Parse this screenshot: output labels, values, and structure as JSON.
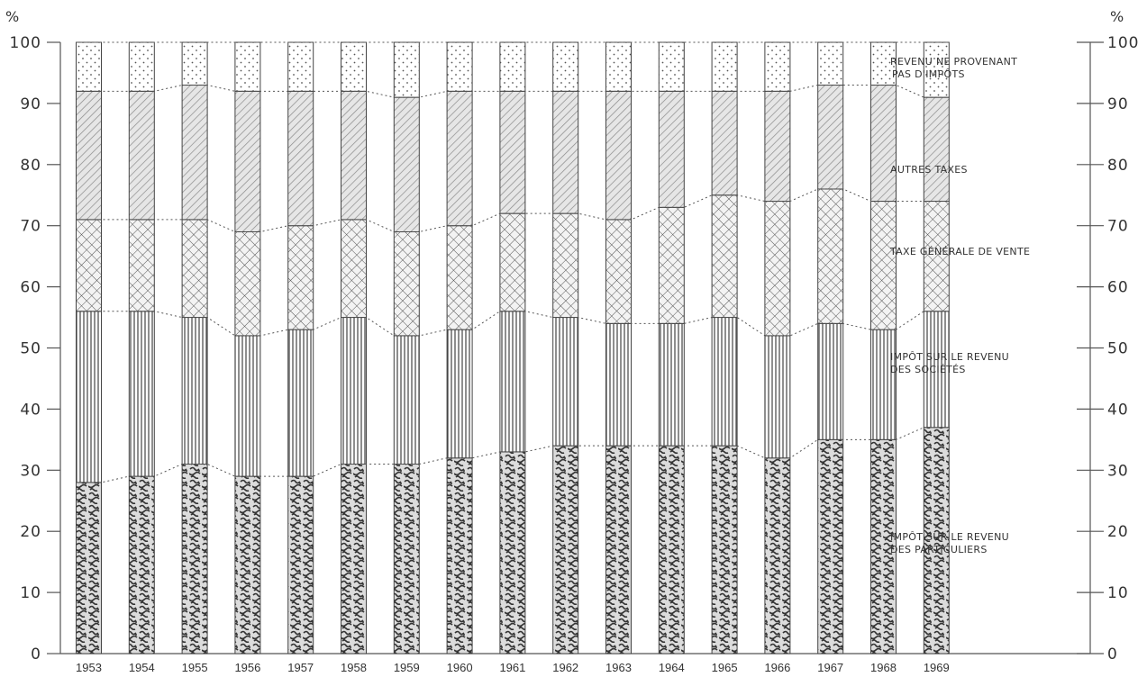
{
  "chart_data": {
    "type": "bar",
    "stacked": true,
    "percent": true,
    "unit_left": "%",
    "unit_right": "%",
    "ylim": [
      0,
      100
    ],
    "yticks": [
      0,
      10,
      20,
      30,
      40,
      50,
      60,
      70,
      80,
      90,
      100
    ],
    "categories": [
      "1953",
      "1954",
      "1955",
      "1956",
      "1957",
      "1958",
      "1959",
      "1960",
      "1961",
      "1962",
      "1963",
      "1964",
      "1965",
      "1966",
      "1967",
      "1968",
      "1969"
    ],
    "series": [
      {
        "name": "IMPÔT SUR LE REVENU DES PARTICULIERS",
        "label_lines": [
          "IMPÔT SUR LE REVENU",
          "DES PARTICULIERS"
        ],
        "values": [
          28,
          29,
          31,
          29,
          29,
          31,
          31,
          32,
          33,
          34,
          34,
          34,
          34,
          32,
          35,
          35,
          37
        ]
      },
      {
        "name": "IMPÔT SUR LE REVENU DES SOCIÉTÉS",
        "label_lines": [
          "IMPÔT SUR LE REVENU",
          "DES SOCIÉTÉS"
        ],
        "values": [
          28,
          27,
          24,
          23,
          24,
          24,
          21,
          21,
          23,
          21,
          20,
          20,
          21,
          20,
          19,
          18,
          19
        ]
      },
      {
        "name": "TAXE GÉNÉRALE DE VENTE",
        "label_lines": [
          "TAXE GÉNÉRALE DE VENTE"
        ],
        "values": [
          15,
          15,
          16,
          17,
          17,
          16,
          17,
          17,
          16,
          17,
          17,
          19,
          20,
          22,
          22,
          21,
          18
        ]
      },
      {
        "name": "AUTRES TAXES",
        "label_lines": [
          "AUTRES TAXES"
        ],
        "values": [
          21,
          21,
          22,
          23,
          22,
          21,
          22,
          22,
          20,
          20,
          21,
          19,
          17,
          18,
          17,
          19,
          17
        ]
      },
      {
        "name": "REVENU NE PROVENANT PAS D'IMPÔTS",
        "label_lines": [
          "REVENU NE PROVENANT",
          "PAS D'IMPÔTS"
        ],
        "values": [
          8,
          8,
          7,
          8,
          8,
          8,
          9,
          8,
          8,
          8,
          8,
          8,
          8,
          8,
          7,
          7,
          9
        ]
      }
    ],
    "legend_placement": "right, aligned with each band",
    "grid": false
  }
}
